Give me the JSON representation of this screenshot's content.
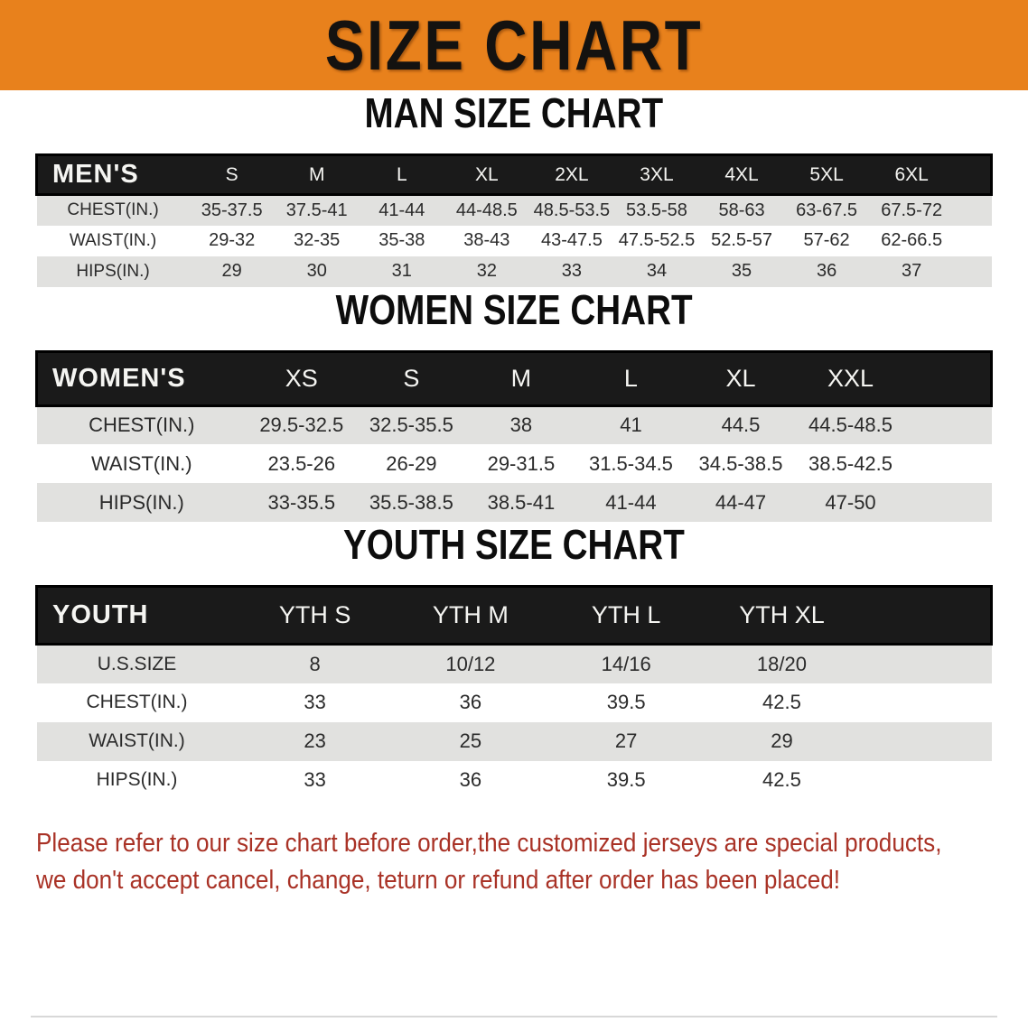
{
  "banner": {
    "title": "SIZE CHART"
  },
  "sections": [
    {
      "id": "men",
      "heading": "MAN SIZE CHART",
      "table": {
        "header_label": "MEN'S",
        "columns": [
          "S",
          "M",
          "L",
          "XL",
          "2XL",
          "3XL",
          "4XL",
          "5XL",
          "6XL"
        ],
        "rows": [
          {
            "label": "CHEST(IN.)",
            "values": [
              "35-37.5",
              "37.5-41",
              "41-44",
              "44-48.5",
              "48.5-53.5",
              "53.5-58",
              "58-63",
              "63-67.5",
              "67.5-72"
            ]
          },
          {
            "label": "WAIST(IN.)",
            "values": [
              "29-32",
              "32-35",
              "35-38",
              "38-43",
              "43-47.5",
              "47.5-52.5",
              "52.5-57",
              "57-62",
              "62-66.5"
            ]
          },
          {
            "label": "HIPS(IN.)",
            "values": [
              "29",
              "30",
              "31",
              "32",
              "33",
              "34",
              "35",
              "36",
              "37"
            ]
          }
        ]
      }
    },
    {
      "id": "women",
      "heading": "WOMEN SIZE CHART",
      "table": {
        "header_label": "WOMEN'S",
        "columns": [
          "XS",
          "S",
          "M",
          "L",
          "XL",
          "XXL"
        ],
        "rows": [
          {
            "label": "CHEST(IN.)",
            "values": [
              "29.5-32.5",
              "32.5-35.5",
              "38",
              "41",
              "44.5",
              "44.5-48.5"
            ]
          },
          {
            "label": "WAIST(IN.)",
            "values": [
              "23.5-26",
              "26-29",
              "29-31.5",
              "31.5-34.5",
              "34.5-38.5",
              "38.5-42.5"
            ]
          },
          {
            "label": "HIPS(IN.)",
            "values": [
              "33-35.5",
              "35.5-38.5",
              "38.5-41",
              "41-44",
              "44-47",
              "47-50"
            ]
          }
        ]
      }
    },
    {
      "id": "youth",
      "heading": "YOUTH SIZE CHART",
      "table": {
        "header_label": "YOUTH",
        "columns": [
          "YTH S",
          "YTH M",
          "YTH L",
          "YTH XL"
        ],
        "rows": [
          {
            "label": "U.S.SIZE",
            "values": [
              "8",
              "10/12",
              "14/16",
              "18/20"
            ]
          },
          {
            "label": "CHEST(IN.)",
            "values": [
              "33",
              "36",
              "39.5",
              "42.5"
            ]
          },
          {
            "label": "WAIST(IN.)",
            "values": [
              "23",
              "25",
              "27",
              "29"
            ]
          },
          {
            "label": "HIPS(IN.)",
            "values": [
              "33",
              "36",
              "39.5",
              "42.5"
            ]
          }
        ]
      }
    }
  ],
  "footer": {
    "line1": "Please refer to our size chart before order,the customized jerseys are special products,",
    "line2": "we don't accept cancel, change, teturn or refund after order has been placed!"
  },
  "colors": {
    "banner_bg": "#E8811C",
    "header_bg": "#1A1A1A",
    "row_stripe": "#E1E1DF",
    "footer_red": "#A93226"
  }
}
